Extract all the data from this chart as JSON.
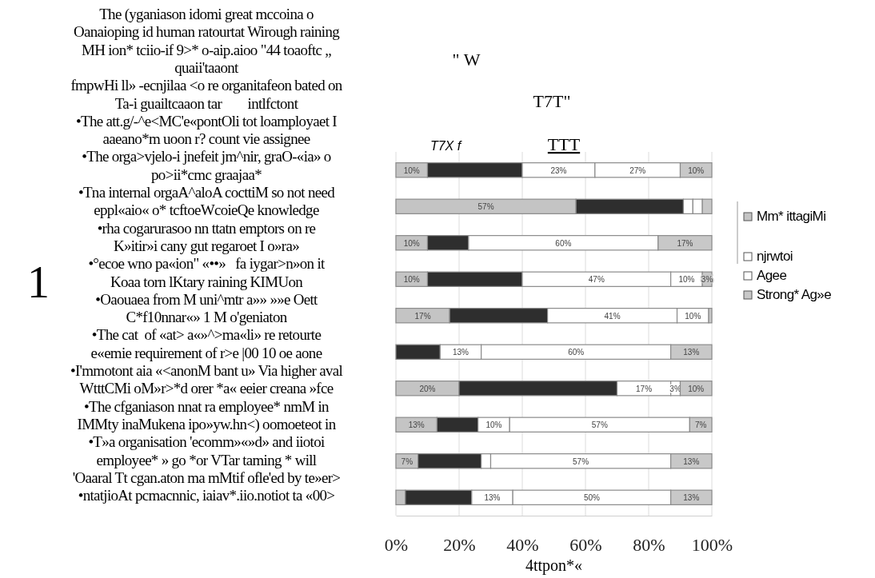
{
  "chart_data": {
    "type": "bar",
    "orientation": "horizontal",
    "stacked": true,
    "categories": [
      null,
      null,
      null,
      null,
      null,
      null,
      null,
      null,
      null,
      null
    ],
    "xlabel": "4ttpon*«",
    "xlim": [
      0,
      100
    ],
    "xticks": [
      {
        "value": 0,
        "label": "0%"
      },
      {
        "value": 20,
        "label": "20%"
      },
      {
        "value": 40,
        "label": "40%"
      },
      {
        "value": 60,
        "label": "60%"
      },
      {
        "value": 80,
        "label": "80%"
      },
      {
        "value": 100,
        "label": "100%"
      }
    ],
    "grid": "x",
    "legend": "right",
    "tick_labels": "x",
    "series": [
      {
        "name": "Mm* ittagiMi",
        "color": "#c4c4c4",
        "values": [
          10,
          57,
          10,
          10,
          17,
          0,
          20,
          13,
          7,
          3
        ],
        "value_labels": [
          "10%",
          "57%",
          "10%",
          "10%",
          "17%",
          null,
          "20%",
          "13%",
          "7%",
          null
        ]
      },
      {
        "color": "#2e2e2e",
        "values": [
          30,
          34,
          13,
          30,
          31,
          14,
          50,
          13,
          20,
          21
        ]
      },
      {
        "name": "njrwtoi",
        "color": "#ffffff",
        "values": [
          23,
          3,
          60,
          47,
          41,
          13,
          17,
          10,
          3,
          13
        ],
        "value_labels": [
          "23%",
          null,
          "60%",
          "47%",
          "41%",
          "13%",
          "17%",
          "10%",
          null,
          "13%"
        ]
      },
      {
        "name": "Agee",
        "color": "#ffffff",
        "values": [
          27,
          3,
          0,
          10,
          10,
          60,
          3,
          57,
          57,
          50
        ],
        "value_labels": [
          "27%",
          null,
          null,
          "10%",
          "10%",
          "60%",
          "3%",
          "57%",
          "57%",
          "50%"
        ]
      },
      {
        "name": "Strong* Ag»e",
        "color": "#c8c8c8",
        "values": [
          10,
          3,
          17,
          3,
          1,
          13,
          10,
          7,
          13,
          13
        ],
        "value_labels": [
          "10%",
          null,
          "17%",
          "3%",
          null,
          "13%",
          "10%",
          "7%",
          "13%",
          "13%"
        ]
      }
    ],
    "annotations": [
      "The (yganiason idomi great mccoina o",
      "Oanaioping id human ratourtat Wirough raining",
      "MH ion* tciio-if 9>* o-aip.aioo \"44 toaoftc „",
      "quaii'taaont",
      "fmpwHi ll» -ecnjilaa <o re organitafeon bated on",
      "Ta-i guailtcaaon tar        intlfctont",
      "•The att.g/-^e<MC'e«pontOli tot loamployaet I",
      "aaeano*m uoon r? count vie assignee",
      "•The orga>vjelo-i jnefeit jm^nir, graO-«ia» o",
      "po>ii*cmc graajaa*",
      "•Tna internal orgaA^aloA cocttiM so not need",
      "eppl«aio« o* tcftoeWcoieQe knowledge",
      "•rha cogarurasoo nn ttatn emptors on re",
      "K»itir»i cany gut regaroet I o»ra»",
      "•°ecoe wno pa«ion\" «••»   fa iygar>n»on it",
      "Koaa torn lKtary raining KIMUon",
      "•Oaouaea from M uni^mtr a»» »»e Oett",
      "C*f10nnar«» 1 M o'geniaton",
      "•The cat  of «at> a«»^>ma«li» re retourte",
      "e«emie requirement of r>e |00 10 oe aone",
      "•I'mmotont aia «<anonM bant u» Via higher aval",
      "WtttCMi oM»r>*d orer *a« eeier creana »fce",
      "•The cfganiason nnat ra employee* nmM in",
      "IMMty inaMukena ipo»yw.hn<) oomoeteot in",
      "•T»a organisation 'ecomm»«»d» and iiotoi",
      "employee* » go *or VTar taming * will",
      "'Oaaral Tt cgan.aton ma mMtif ofle'ed by te»er>",
      "•ntatjioAt pcmacnnic, iaiav*.iio.notiot ta «00>",
      "1",
      "\" W",
      "T7T\"",
      "T7X f",
      "TTT"
    ]
  }
}
